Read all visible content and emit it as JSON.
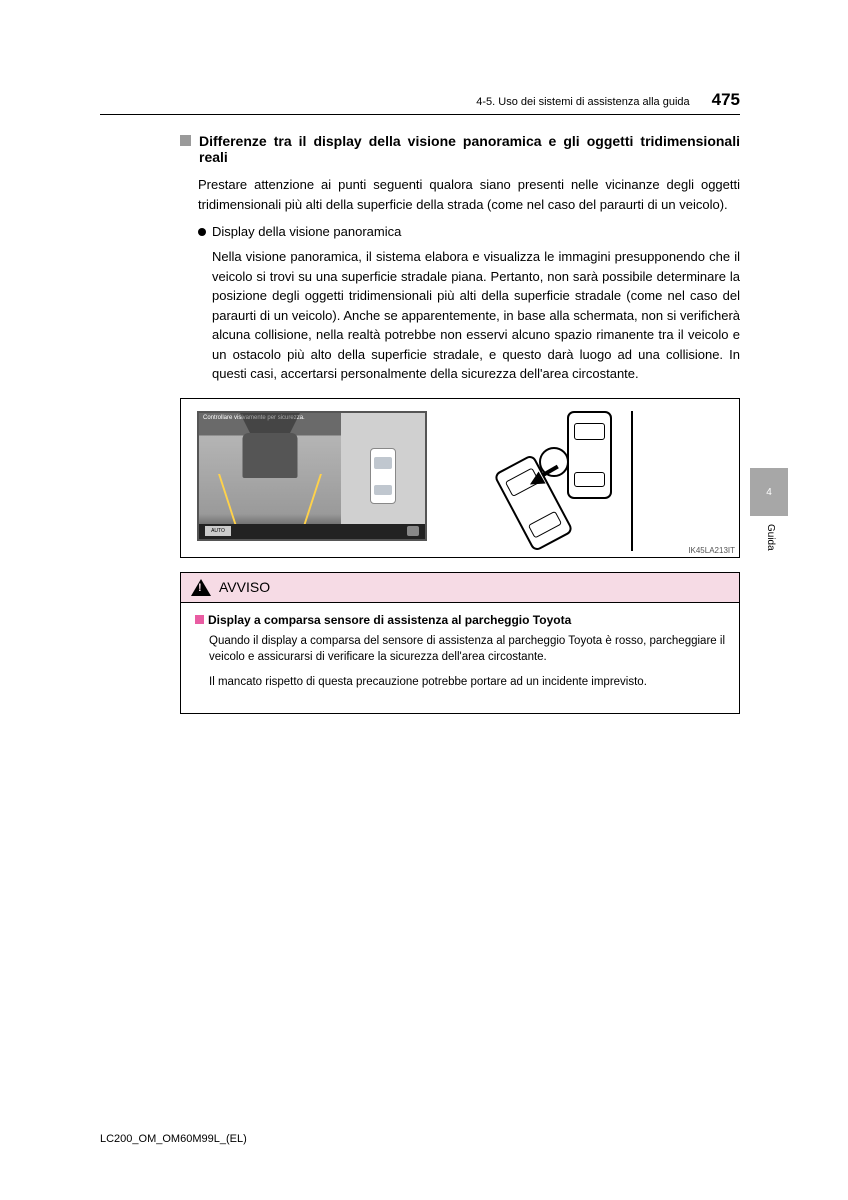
{
  "header": {
    "section_path": "4-5. Uso dei sistemi di assistenza alla guida",
    "page_number": "475"
  },
  "title": "Differenze tra il display della visione panoramica e gli oggetti tridimensionali reali",
  "intro": "Prestare attenzione ai punti seguenti qualora siano presenti nelle vicinanze degli oggetti tridimensionali più alti della superficie della strada (come nel caso del paraurti di un veicolo).",
  "bullet": "Display della visione panoramica",
  "body": "Nella visione panoramica, il sistema elabora e visualizza le immagini presupponendo che il veicolo si trovi su una superficie stradale piana. Pertanto, non sarà possibile determinare la posizione degli oggetti tridimensionali più alti della superficie stradale (come nel caso del paraurti di un veicolo). Anche se apparentemente, in base alla schermata, non si verificherà alcuna collisione, nella realtà potrebbe non esservi alcuno spazio rimanente tra il veicolo e un ostacolo più alto della superficie stradale, e questo darà luogo ad una collisione. In questi casi, accertarsi personalmente della sicurezza dell'area circostante.",
  "figure": {
    "camera_caption": "Controllare visivamente per sicurezza.",
    "auto_button": "AUTO",
    "code": "IK45LA213IT"
  },
  "avviso": {
    "label": "AVVISO",
    "subtitle": "Display a comparsa sensore di assistenza al parcheggio Toyota",
    "p1": "Quando il display a comparsa del sensore di assistenza al parcheggio Toyota è rosso, parcheggiare il veicolo e assicurarsi di verificare la sicurezza dell'area circostante.",
    "p2": "Il mancato rispetto di questa precauzione potrebbe portare ad un incidente imprevisto."
  },
  "side_tab": {
    "number": "4",
    "label": "Guida"
  },
  "footer": "LC200_OM_OM60M99L_(EL)",
  "colors": {
    "square_gray": "#9a9a9a",
    "avviso_bg": "#f6dbe5",
    "pink_marker": "#e95ca2",
    "tab_bg": "#a7a7a7"
  }
}
